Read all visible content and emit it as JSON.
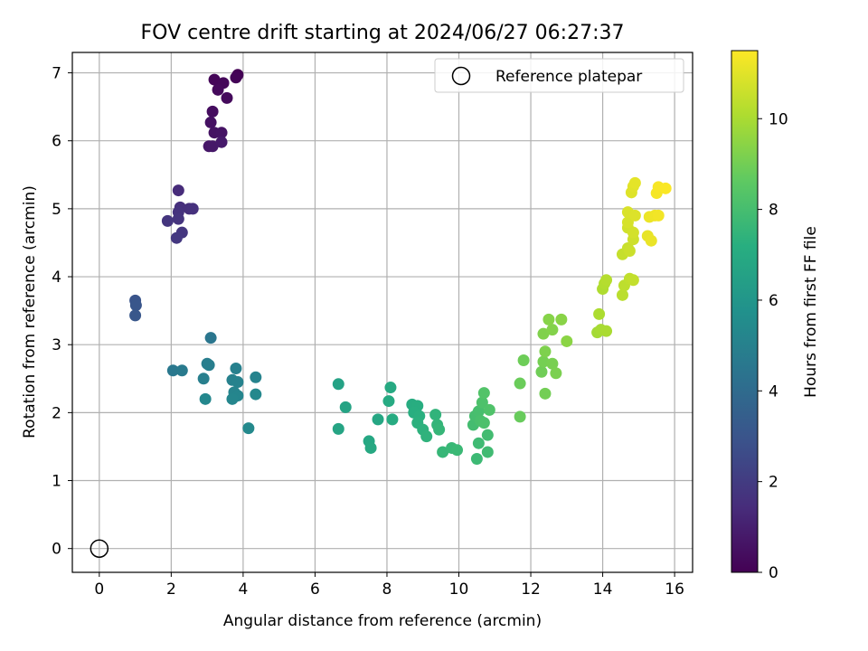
{
  "chart_data": {
    "type": "scatter",
    "title": "FOV centre drift starting at 2024/06/27 06:27:37",
    "xlabel": "Angular distance from reference (arcmin)",
    "ylabel": "Rotation from reference (arcmin)",
    "xlim": [
      -0.75,
      16.5
    ],
    "ylim": [
      -0.35,
      7.3
    ],
    "xticks": [
      0,
      2,
      4,
      6,
      8,
      10,
      12,
      14,
      16
    ],
    "yticks": [
      0,
      1,
      2,
      3,
      4,
      5,
      6,
      7
    ],
    "grid": true,
    "legend": {
      "placement": "top-right",
      "entries": [
        "Reference platepar"
      ]
    },
    "reference_point": {
      "x": 0,
      "y": 0,
      "marker": "open-circle"
    },
    "colorbar": {
      "label": "Hours from first FF file",
      "range": [
        0,
        11.5
      ],
      "ticks": [
        0,
        2,
        4,
        6,
        8,
        10
      ],
      "colormap": "viridis"
    },
    "series": [
      {
        "points": [
          {
            "x": 3.85,
            "y": 6.97,
            "h": 0.0
          },
          {
            "x": 3.8,
            "y": 6.93,
            "h": 0.1
          },
          {
            "x": 3.2,
            "y": 6.9,
            "h": 0.15
          },
          {
            "x": 3.45,
            "y": 6.85,
            "h": 0.2
          },
          {
            "x": 3.3,
            "y": 6.75,
            "h": 0.25
          },
          {
            "x": 3.55,
            "y": 6.63,
            "h": 0.3
          },
          {
            "x": 3.15,
            "y": 6.43,
            "h": 0.4
          },
          {
            "x": 3.1,
            "y": 6.27,
            "h": 0.5
          },
          {
            "x": 3.2,
            "y": 6.12,
            "h": 0.55
          },
          {
            "x": 3.4,
            "y": 6.12,
            "h": 0.6
          },
          {
            "x": 3.05,
            "y": 5.92,
            "h": 0.7
          },
          {
            "x": 3.15,
            "y": 5.92,
            "h": 0.75
          },
          {
            "x": 3.4,
            "y": 5.98,
            "h": 0.8
          },
          {
            "x": 2.2,
            "y": 5.27,
            "h": 1.4
          },
          {
            "x": 2.25,
            "y": 5.02,
            "h": 1.5
          },
          {
            "x": 2.5,
            "y": 5.0,
            "h": 1.55
          },
          {
            "x": 2.6,
            "y": 5.0,
            "h": 1.6
          },
          {
            "x": 2.2,
            "y": 4.95,
            "h": 1.65
          },
          {
            "x": 2.2,
            "y": 4.85,
            "h": 1.7
          },
          {
            "x": 1.9,
            "y": 4.82,
            "h": 1.75
          },
          {
            "x": 2.3,
            "y": 4.65,
            "h": 1.8
          },
          {
            "x": 2.15,
            "y": 4.57,
            "h": 1.85
          },
          {
            "x": 1.0,
            "y": 3.65,
            "h": 3.0
          },
          {
            "x": 1.02,
            "y": 3.58,
            "h": 3.05
          },
          {
            "x": 1.0,
            "y": 3.43,
            "h": 3.1
          },
          {
            "x": 3.1,
            "y": 3.1,
            "h": 4.5
          },
          {
            "x": 2.05,
            "y": 2.62,
            "h": 4.6
          },
          {
            "x": 2.3,
            "y": 2.62,
            "h": 4.7
          },
          {
            "x": 3.0,
            "y": 2.72,
            "h": 4.8
          },
          {
            "x": 3.05,
            "y": 2.7,
            "h": 4.85
          },
          {
            "x": 2.9,
            "y": 2.5,
            "h": 4.9
          },
          {
            "x": 3.8,
            "y": 2.65,
            "h": 4.95
          },
          {
            "x": 3.7,
            "y": 2.48,
            "h": 5.0
          },
          {
            "x": 3.85,
            "y": 2.45,
            "h": 5.05
          },
          {
            "x": 4.35,
            "y": 2.52,
            "h": 5.1
          },
          {
            "x": 3.75,
            "y": 2.3,
            "h": 5.15
          },
          {
            "x": 3.85,
            "y": 2.25,
            "h": 5.2
          },
          {
            "x": 3.7,
            "y": 2.2,
            "h": 5.25
          },
          {
            "x": 2.95,
            "y": 2.2,
            "h": 5.3
          },
          {
            "x": 4.35,
            "y": 2.27,
            "h": 5.35
          },
          {
            "x": 4.15,
            "y": 1.77,
            "h": 5.4
          },
          {
            "x": 6.65,
            "y": 2.42,
            "h": 6.6
          },
          {
            "x": 6.85,
            "y": 2.08,
            "h": 6.65
          },
          {
            "x": 6.65,
            "y": 1.76,
            "h": 6.7
          },
          {
            "x": 7.75,
            "y": 1.9,
            "h": 6.8
          },
          {
            "x": 7.5,
            "y": 1.58,
            "h": 6.85
          },
          {
            "x": 7.55,
            "y": 1.48,
            "h": 6.9
          },
          {
            "x": 8.1,
            "y": 2.37,
            "h": 6.95
          },
          {
            "x": 8.05,
            "y": 2.17,
            "h": 7.0
          },
          {
            "x": 8.15,
            "y": 1.9,
            "h": 7.05
          },
          {
            "x": 8.7,
            "y": 2.12,
            "h": 7.1
          },
          {
            "x": 8.85,
            "y": 2.1,
            "h": 7.15
          },
          {
            "x": 8.75,
            "y": 2.0,
            "h": 7.2
          },
          {
            "x": 8.9,
            "y": 1.95,
            "h": 7.25
          },
          {
            "x": 8.85,
            "y": 1.85,
            "h": 7.3
          },
          {
            "x": 9.0,
            "y": 1.75,
            "h": 7.35
          },
          {
            "x": 9.1,
            "y": 1.65,
            "h": 7.4
          },
          {
            "x": 9.35,
            "y": 1.97,
            "h": 7.45
          },
          {
            "x": 9.4,
            "y": 1.82,
            "h": 7.5
          },
          {
            "x": 9.45,
            "y": 1.75,
            "h": 7.55
          },
          {
            "x": 9.55,
            "y": 1.42,
            "h": 7.6
          },
          {
            "x": 9.8,
            "y": 1.48,
            "h": 7.65
          },
          {
            "x": 9.95,
            "y": 1.45,
            "h": 7.7
          },
          {
            "x": 10.5,
            "y": 1.32,
            "h": 7.75
          },
          {
            "x": 10.55,
            "y": 1.55,
            "h": 7.8
          },
          {
            "x": 10.8,
            "y": 1.42,
            "h": 7.85
          },
          {
            "x": 10.8,
            "y": 1.67,
            "h": 7.9
          },
          {
            "x": 10.4,
            "y": 1.82,
            "h": 7.95
          },
          {
            "x": 10.45,
            "y": 1.95,
            "h": 8.0
          },
          {
            "x": 10.55,
            "y": 2.02,
            "h": 8.05
          },
          {
            "x": 10.6,
            "y": 1.88,
            "h": 8.1
          },
          {
            "x": 10.7,
            "y": 1.85,
            "h": 8.15
          },
          {
            "x": 10.65,
            "y": 2.15,
            "h": 8.2
          },
          {
            "x": 10.85,
            "y": 2.04,
            "h": 8.25
          },
          {
            "x": 10.7,
            "y": 2.29,
            "h": 8.3
          },
          {
            "x": 11.7,
            "y": 1.94,
            "h": 8.8
          },
          {
            "x": 11.7,
            "y": 2.43,
            "h": 8.85
          },
          {
            "x": 11.8,
            "y": 2.77,
            "h": 8.9
          },
          {
            "x": 12.3,
            "y": 2.6,
            "h": 8.95
          },
          {
            "x": 12.4,
            "y": 2.28,
            "h": 9.0
          },
          {
            "x": 12.35,
            "y": 2.75,
            "h": 9.05
          },
          {
            "x": 12.6,
            "y": 2.72,
            "h": 9.1
          },
          {
            "x": 12.7,
            "y": 2.58,
            "h": 9.15
          },
          {
            "x": 12.4,
            "y": 2.9,
            "h": 9.2
          },
          {
            "x": 12.35,
            "y": 3.16,
            "h": 9.25
          },
          {
            "x": 12.6,
            "y": 3.22,
            "h": 9.3
          },
          {
            "x": 12.5,
            "y": 3.37,
            "h": 9.35
          },
          {
            "x": 12.85,
            "y": 3.37,
            "h": 9.4
          },
          {
            "x": 13.0,
            "y": 3.05,
            "h": 9.45
          },
          {
            "x": 13.85,
            "y": 3.18,
            "h": 9.9
          },
          {
            "x": 13.95,
            "y": 3.22,
            "h": 9.95
          },
          {
            "x": 14.1,
            "y": 3.2,
            "h": 10.0
          },
          {
            "x": 13.9,
            "y": 3.45,
            "h": 10.05
          },
          {
            "x": 14.0,
            "y": 3.82,
            "h": 10.1
          },
          {
            "x": 14.05,
            "y": 3.9,
            "h": 10.15
          },
          {
            "x": 14.1,
            "y": 3.95,
            "h": 10.2
          },
          {
            "x": 14.55,
            "y": 3.73,
            "h": 10.3
          },
          {
            "x": 14.6,
            "y": 3.87,
            "h": 10.35
          },
          {
            "x": 14.75,
            "y": 3.97,
            "h": 10.4
          },
          {
            "x": 14.85,
            "y": 3.95,
            "h": 10.45
          },
          {
            "x": 14.55,
            "y": 4.33,
            "h": 10.5
          },
          {
            "x": 14.7,
            "y": 4.42,
            "h": 10.55
          },
          {
            "x": 14.75,
            "y": 4.38,
            "h": 10.6
          },
          {
            "x": 14.85,
            "y": 4.55,
            "h": 10.65
          },
          {
            "x": 14.7,
            "y": 4.72,
            "h": 10.7
          },
          {
            "x": 14.85,
            "y": 4.65,
            "h": 10.75
          },
          {
            "x": 14.7,
            "y": 4.8,
            "h": 10.8
          },
          {
            "x": 14.7,
            "y": 4.95,
            "h": 10.85
          },
          {
            "x": 14.9,
            "y": 4.9,
            "h": 10.9
          },
          {
            "x": 14.8,
            "y": 5.24,
            "h": 10.95
          },
          {
            "x": 14.85,
            "y": 5.33,
            "h": 11.0
          },
          {
            "x": 14.9,
            "y": 5.38,
            "h": 11.05
          },
          {
            "x": 15.25,
            "y": 4.6,
            "h": 11.1
          },
          {
            "x": 15.35,
            "y": 4.53,
            "h": 11.15
          },
          {
            "x": 15.3,
            "y": 4.88,
            "h": 11.2
          },
          {
            "x": 15.45,
            "y": 4.9,
            "h": 11.25
          },
          {
            "x": 15.55,
            "y": 4.9,
            "h": 11.3
          },
          {
            "x": 15.5,
            "y": 5.23,
            "h": 11.35
          },
          {
            "x": 15.55,
            "y": 5.32,
            "h": 11.4
          },
          {
            "x": 15.75,
            "y": 5.3,
            "h": 11.45
          }
        ]
      }
    ]
  }
}
